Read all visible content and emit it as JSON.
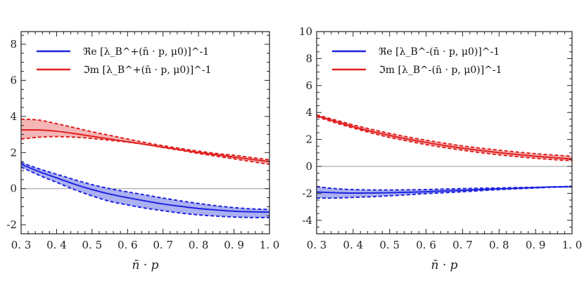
{
  "chart_data": [
    {
      "type": "line",
      "panel": "left",
      "xlabel": "n̄ · p",
      "ylabel": "",
      "xlim": [
        0.3,
        1.0
      ],
      "ylim": [
        -2.5,
        8.7
      ],
      "x_ticks": [
        0.3,
        0.4,
        0.5,
        0.6,
        0.7,
        0.8,
        0.9,
        1.0
      ],
      "x_tick_labels": [
        "0. 3",
        "0. 4",
        "0. 5",
        "0. 6",
        "0. 7",
        "0. 8",
        "0. 9",
        "1. 0"
      ],
      "y_ticks": [
        -2,
        0,
        2,
        4,
        6,
        8
      ],
      "y_tick_labels": [
        "-2",
        "0",
        "2",
        "4",
        "6",
        "8"
      ],
      "zero_line": true,
      "legend_position": "top-left",
      "x": [
        0.3,
        0.35,
        0.4,
        0.45,
        0.5,
        0.55,
        0.6,
        0.65,
        0.7,
        0.75,
        0.8,
        0.85,
        0.9,
        0.95,
        1.0
      ],
      "series": [
        {
          "name": "Re",
          "legend_label": "ℜe [λ_B^+(n̄ · p, μ0)]^-1",
          "color": "#1f24e0",
          "band_color": "#9da3ee",
          "values": [
            1.35,
            0.95,
            0.6,
            0.25,
            -0.05,
            -0.3,
            -0.5,
            -0.68,
            -0.85,
            -0.98,
            -1.1,
            -1.18,
            -1.25,
            -1.28,
            -1.3
          ],
          "lower": [
            1.2,
            0.75,
            0.35,
            -0.05,
            -0.4,
            -0.7,
            -0.9,
            -1.08,
            -1.22,
            -1.35,
            -1.45,
            -1.52,
            -1.57,
            -1.6,
            -1.6
          ],
          "upper": [
            1.45,
            1.1,
            0.8,
            0.5,
            0.22,
            0.0,
            -0.18,
            -0.35,
            -0.52,
            -0.68,
            -0.82,
            -0.95,
            -1.05,
            -1.12,
            -1.15
          ]
        },
        {
          "name": "Im",
          "legend_label": "ℑm [λ_B^+(n̄ · p, μ0)]^-1",
          "color": "#e01f1f",
          "band_color": "#f3a9a9",
          "values": [
            3.25,
            3.25,
            3.18,
            3.05,
            2.9,
            2.75,
            2.6,
            2.45,
            2.3,
            2.15,
            2.0,
            1.88,
            1.75,
            1.62,
            1.5
          ],
          "lower": [
            2.75,
            2.85,
            2.88,
            2.85,
            2.78,
            2.68,
            2.58,
            2.45,
            2.28,
            2.12,
            1.95,
            1.8,
            1.65,
            1.5,
            1.35
          ],
          "upper": [
            3.85,
            3.8,
            3.6,
            3.38,
            3.15,
            2.95,
            2.75,
            2.55,
            2.38,
            2.22,
            2.08,
            1.95,
            1.85,
            1.72,
            1.6
          ]
        }
      ]
    },
    {
      "type": "line",
      "panel": "right",
      "xlabel": "n̄ · p",
      "ylabel": "",
      "xlim": [
        0.3,
        1.0
      ],
      "ylim": [
        -5,
        10
      ],
      "x_ticks": [
        0.3,
        0.4,
        0.5,
        0.6,
        0.7,
        0.8,
        0.9,
        1.0
      ],
      "x_tick_labels": [
        "0. 3",
        "0. 4",
        "0. 5",
        "0. 6",
        "0. 7",
        "0. 8",
        "0. 9",
        "1. 0"
      ],
      "y_ticks": [
        -4,
        -2,
        0,
        2,
        4,
        6,
        8,
        10
      ],
      "y_tick_labels": [
        "-4",
        "-2",
        "0",
        "2",
        "4",
        "6",
        "8",
        "10"
      ],
      "zero_line": true,
      "legend_position": "top-left",
      "x": [
        0.3,
        0.35,
        0.4,
        0.45,
        0.5,
        0.55,
        0.6,
        0.65,
        0.7,
        0.75,
        0.8,
        0.85,
        0.9,
        0.95,
        1.0
      ],
      "series": [
        {
          "name": "Re",
          "legend_label": "ℜe [λ_B^-(n̄ · p, μ0)]^-1",
          "color": "#1f24e0",
          "band_color": "#9da3ee",
          "values": [
            -1.9,
            -1.95,
            -1.98,
            -1.97,
            -1.95,
            -1.92,
            -1.88,
            -1.82,
            -1.78,
            -1.72,
            -1.67,
            -1.62,
            -1.57,
            -1.52,
            -1.5
          ],
          "lower": [
            -2.35,
            -2.35,
            -2.3,
            -2.25,
            -2.18,
            -2.1,
            -2.02,
            -1.95,
            -1.88,
            -1.8,
            -1.72,
            -1.66,
            -1.6,
            -1.54,
            -1.52
          ],
          "upper": [
            -1.5,
            -1.65,
            -1.72,
            -1.75,
            -1.75,
            -1.74,
            -1.72,
            -1.68,
            -1.65,
            -1.62,
            -1.6,
            -1.57,
            -1.55,
            -1.52,
            -1.48
          ]
        },
        {
          "name": "Im",
          "legend_label": "ℑm [λ_B^-(n̄ · p, μ0)]^-1",
          "color": "#e01f1f",
          "band_color": "#f3a9a9",
          "values": [
            3.75,
            3.35,
            2.95,
            2.6,
            2.3,
            2.02,
            1.78,
            1.55,
            1.35,
            1.18,
            1.02,
            0.88,
            0.75,
            0.65,
            0.55
          ],
          "lower": [
            3.7,
            3.25,
            2.85,
            2.48,
            2.15,
            1.88,
            1.62,
            1.4,
            1.2,
            1.02,
            0.86,
            0.72,
            0.6,
            0.5,
            0.42
          ],
          "upper": [
            3.82,
            3.45,
            3.08,
            2.75,
            2.45,
            2.18,
            1.94,
            1.72,
            1.52,
            1.35,
            1.2,
            1.06,
            0.94,
            0.84,
            0.75
          ]
        }
      ]
    }
  ]
}
